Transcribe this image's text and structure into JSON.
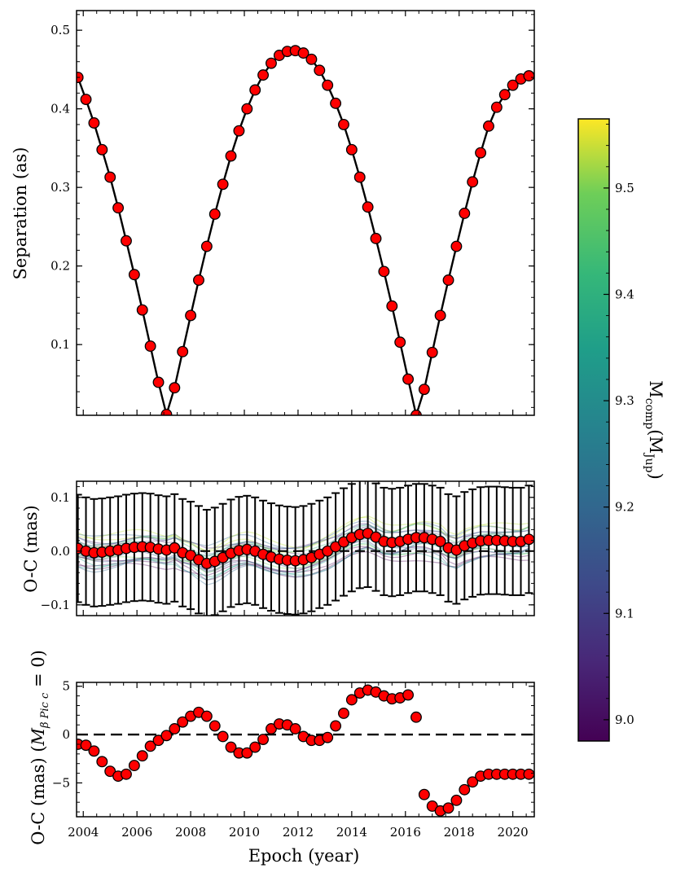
{
  "chart_data": [
    {
      "type": "scatter",
      "panel": "separation",
      "ylabel": "Separation (as)",
      "xlim": [
        2003.75,
        2020.8
      ],
      "ylim": [
        0.01,
        0.525
      ],
      "yticks": [
        0.1,
        0.2,
        0.3,
        0.4,
        0.5
      ],
      "ytick_labels": [
        "0.1",
        "0.2",
        "0.3",
        "0.4",
        "0.5"
      ],
      "series": [
        {
          "name": "observations",
          "marker": "circle",
          "color": "#ff0000",
          "x": [
            2003.8,
            2004.1,
            2004.4,
            2004.7,
            2005.0,
            2005.3,
            2005.6,
            2005.9,
            2006.2,
            2006.5,
            2006.8,
            2007.1,
            2007.4,
            2007.7,
            2008.0,
            2008.3,
            2008.6,
            2008.9,
            2009.2,
            2009.5,
            2009.8,
            2010.1,
            2010.4,
            2010.7,
            2011.0,
            2011.3,
            2011.6,
            2011.9,
            2012.2,
            2012.5,
            2012.8,
            2013.1,
            2013.4,
            2013.7,
            2014.0,
            2014.3,
            2014.6,
            2014.9,
            2015.2,
            2015.5,
            2015.8,
            2016.1,
            2016.4,
            2016.7,
            2017.0,
            2017.3,
            2017.6,
            2017.9,
            2018.2,
            2018.5,
            2018.8,
            2019.1,
            2019.4,
            2019.7,
            2020.0,
            2020.3,
            2020.6
          ],
          "y": [
            0.44,
            0.412,
            0.382,
            0.348,
            0.313,
            0.274,
            0.232,
            0.189,
            0.144,
            0.098,
            0.052,
            0.011,
            0.045,
            0.091,
            0.137,
            0.182,
            0.225,
            0.266,
            0.304,
            0.34,
            0.372,
            0.4,
            0.424,
            0.443,
            0.458,
            0.468,
            0.473,
            0.474,
            0.471,
            0.463,
            0.449,
            0.43,
            0.407,
            0.38,
            0.348,
            0.313,
            0.275,
            0.235,
            0.193,
            0.149,
            0.103,
            0.056,
            0.01,
            0.043,
            0.09,
            0.137,
            0.182,
            0.225,
            0.267,
            0.307,
            0.344,
            0.378,
            0.402,
            0.418,
            0.43,
            0.438,
            0.442
          ]
        },
        {
          "name": "model",
          "type": "line",
          "color": "#000000"
        }
      ]
    },
    {
      "type": "scatter",
      "panel": "oc",
      "ylabel": "O-C (mas)",
      "xlim": [
        2003.75,
        2020.8
      ],
      "ylim": [
        -0.12,
        0.13
      ],
      "yticks": [
        -0.1,
        0.0,
        0.1
      ],
      "ytick_labels": [
        "−0.1",
        "0.0",
        "0.1"
      ],
      "hline": 0.0,
      "series": [
        {
          "name": "residuals",
          "marker": "circle",
          "color": "#ff0000",
          "x": [
            2003.8,
            2004.1,
            2004.4,
            2004.7,
            2005.0,
            2005.3,
            2005.6,
            2005.9,
            2006.2,
            2006.5,
            2006.8,
            2007.1,
            2007.4,
            2007.7,
            2008.0,
            2008.3,
            2008.6,
            2008.9,
            2009.2,
            2009.5,
            2009.8,
            2010.1,
            2010.4,
            2010.7,
            2011.0,
            2011.3,
            2011.6,
            2011.9,
            2012.2,
            2012.5,
            2012.8,
            2013.1,
            2013.4,
            2013.7,
            2014.0,
            2014.3,
            2014.6,
            2014.9,
            2015.2,
            2015.5,
            2015.8,
            2016.1,
            2016.4,
            2016.7,
            2017.0,
            2017.3,
            2017.6,
            2017.9,
            2018.2,
            2018.5,
            2018.8,
            2019.1,
            2019.4,
            2019.7,
            2020.0,
            2020.3,
            2020.6
          ],
          "y": [
            0.005,
            0.0,
            -0.003,
            -0.002,
            0.0,
            0.002,
            0.005,
            0.007,
            0.008,
            0.007,
            0.004,
            0.002,
            0.006,
            -0.003,
            -0.008,
            -0.016,
            -0.023,
            -0.019,
            -0.012,
            -0.004,
            0.001,
            0.003,
            0.0,
            -0.006,
            -0.011,
            -0.015,
            -0.017,
            -0.018,
            -0.016,
            -0.012,
            -0.006,
            0.0,
            0.008,
            0.017,
            0.025,
            0.031,
            0.033,
            0.026,
            0.018,
            0.016,
            0.018,
            0.022,
            0.025,
            0.025,
            0.022,
            0.018,
            0.006,
            0.002,
            0.01,
            0.015,
            0.019,
            0.02,
            0.02,
            0.019,
            0.018,
            0.018,
            0.022
          ],
          "yerr": 0.1
        },
        {
          "name": "posterior draws",
          "type": "line",
          "colormap": "viridis"
        }
      ]
    },
    {
      "type": "scatter",
      "panel": "oc_no_planet_c",
      "ylabel": "O-C (mas) (M_{β Pic c} = 0)",
      "xlabel": "Epoch (year)",
      "xlim": [
        2003.75,
        2020.8
      ],
      "ylim": [
        -8.5,
        5.4
      ],
      "yticks": [
        -5,
        0,
        5
      ],
      "ytick_labels": [
        "−5",
        "0",
        "5"
      ],
      "xticks": [
        2004,
        2006,
        2008,
        2010,
        2012,
        2014,
        2016,
        2018,
        2020
      ],
      "xtick_labels": [
        "2004",
        "2006",
        "2008",
        "2010",
        "2012",
        "2014",
        "2016",
        "2018",
        "2020"
      ],
      "hline": 0.0,
      "series": [
        {
          "name": "residuals",
          "marker": "circle",
          "color": "#ff0000",
          "x": [
            2003.8,
            2004.1,
            2004.4,
            2004.7,
            2005.0,
            2005.3,
            2005.6,
            2005.9,
            2006.2,
            2006.5,
            2006.8,
            2007.1,
            2007.4,
            2007.7,
            2008.0,
            2008.3,
            2008.6,
            2008.9,
            2009.2,
            2009.5,
            2009.8,
            2010.1,
            2010.4,
            2010.7,
            2011.0,
            2011.3,
            2011.6,
            2011.9,
            2012.2,
            2012.5,
            2012.8,
            2013.1,
            2013.4,
            2013.7,
            2014.0,
            2014.3,
            2014.6,
            2014.9,
            2015.2,
            2015.5,
            2015.8,
            2016.1,
            2016.4,
            2016.7,
            2017.0,
            2017.3,
            2017.6,
            2017.9,
            2018.2,
            2018.5,
            2018.8,
            2019.1,
            2019.4,
            2019.7,
            2020.0,
            2020.3,
            2020.6
          ],
          "y": [
            -1.0,
            -1.1,
            -1.7,
            -2.8,
            -3.8,
            -4.3,
            -4.1,
            -3.2,
            -2.2,
            -1.2,
            -0.6,
            -0.1,
            0.6,
            1.3,
            1.9,
            2.3,
            1.9,
            0.9,
            -0.2,
            -1.3,
            -1.9,
            -1.9,
            -1.3,
            -0.5,
            0.6,
            1.1,
            1.0,
            0.6,
            -0.2,
            -0.6,
            -0.6,
            -0.3,
            0.9,
            2.2,
            3.6,
            4.3,
            4.6,
            4.4,
            4.0,
            3.7,
            3.8,
            4.1,
            1.8,
            -6.2,
            -7.4,
            -7.9,
            -7.6,
            -6.8,
            -5.7,
            -4.9,
            -4.3,
            -4.1,
            -4.1,
            -4.1,
            -4.1,
            -4.1,
            -4.1
          ]
        }
      ]
    },
    {
      "type": "colorbar",
      "label": "M_comp (M_Jup)",
      "label_main": "M",
      "label_sub_main": "comp",
      "label_unit": "M",
      "label_sub_unit": "Jup",
      "colormap": "viridis",
      "range": [
        8.98,
        9.565
      ],
      "ticks": [
        9.0,
        9.1,
        9.2,
        9.3,
        9.4,
        9.5
      ],
      "tick_labels": [
        "9.0",
        "9.1",
        "9.2",
        "9.3",
        "9.4",
        "9.5"
      ]
    }
  ]
}
